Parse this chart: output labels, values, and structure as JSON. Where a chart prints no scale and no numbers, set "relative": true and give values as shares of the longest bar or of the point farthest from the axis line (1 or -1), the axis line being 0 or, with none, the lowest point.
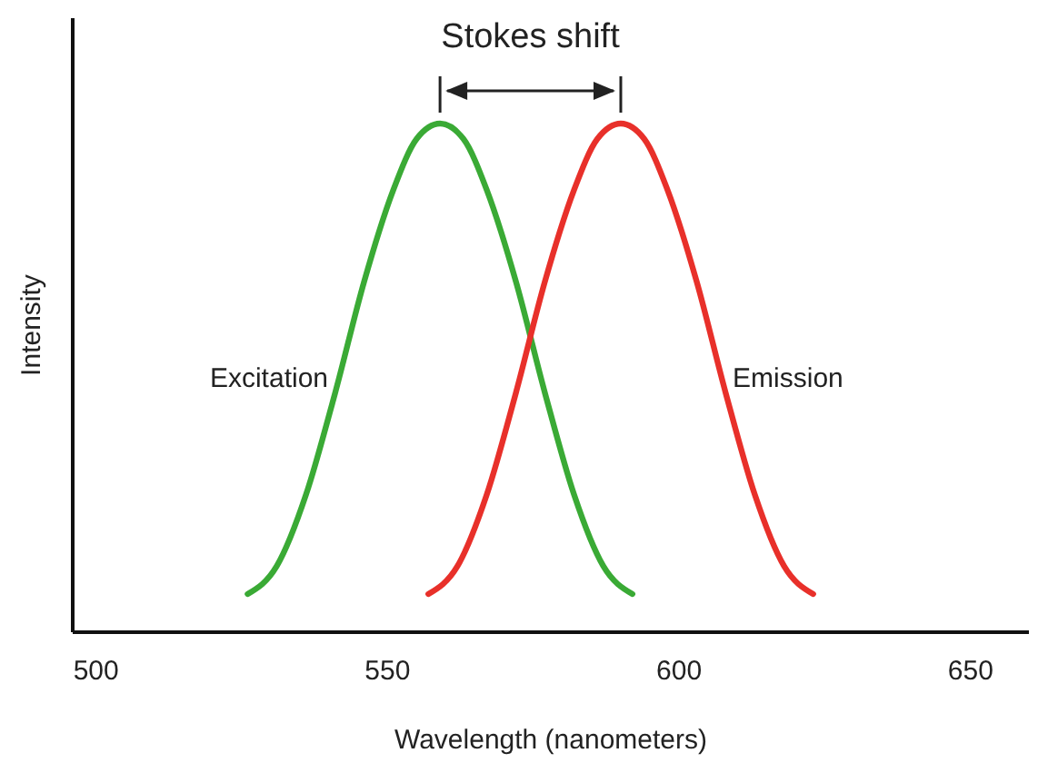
{
  "chart_data": {
    "type": "line",
    "relative": true,
    "xlabel": "Wavelength (nanometers)",
    "ylabel": "Intensity",
    "annotations": [
      "Stokes shift"
    ],
    "xlim": [
      496,
      660
    ],
    "xticks": [
      500,
      550,
      600,
      650
    ],
    "tick_labels": "x",
    "grid": false,
    "marker": "none",
    "line_style": "solid",
    "series": [
      {
        "name": "Excitation",
        "color": "#3aaa35",
        "x": [
          526,
          531,
          536,
          541,
          546,
          551,
          555,
          559,
          563,
          567,
          572,
          577,
          582,
          587,
          592
        ],
        "values": [
          0.075,
          0.13,
          0.27,
          0.47,
          0.69,
          0.87,
          0.97,
          1,
          0.97,
          0.87,
          0.69,
          0.47,
          0.27,
          0.13,
          0.075
        ]
      },
      {
        "name": "Emission",
        "color": "#e8302a",
        "x": [
          557,
          562,
          567,
          572,
          577,
          582,
          586,
          590,
          594,
          598,
          603,
          608,
          613,
          618,
          623
        ],
        "values": [
          0.075,
          0.13,
          0.27,
          0.47,
          0.69,
          0.87,
          0.97,
          1,
          0.97,
          0.87,
          0.69,
          0.47,
          0.27,
          0.13,
          0.075
        ]
      }
    ]
  }
}
